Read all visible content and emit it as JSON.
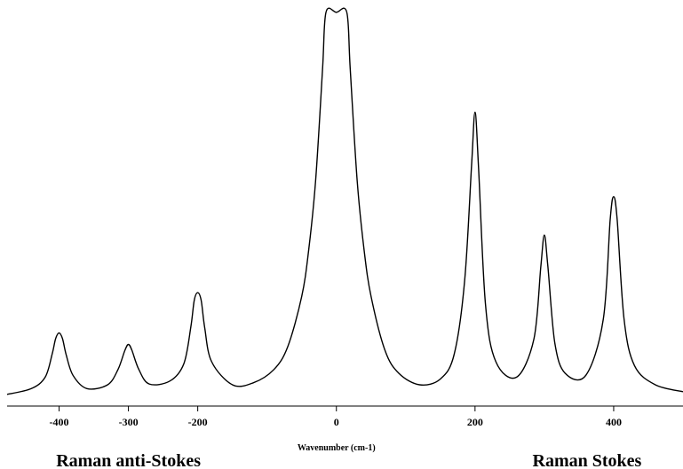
{
  "chart_data": {
    "type": "line",
    "title": "",
    "xlabel": "Wavenumber (cm-1)",
    "ylabel": "",
    "xlim": [
      -475,
      500
    ],
    "ylim": [
      0,
      1.0
    ],
    "xticks": [
      -400,
      -300,
      -200,
      0,
      200,
      400
    ],
    "xtick_labels": [
      "-400",
      "-300",
      "-200",
      "0",
      "200",
      "400"
    ],
    "grid": false,
    "peaks": [
      {
        "x": -400,
        "y": 0.165
      },
      {
        "x": -300,
        "y": 0.135
      },
      {
        "x": -200,
        "y": 0.27
      },
      {
        "x": -15,
        "y": 1.0
      },
      {
        "x": 15,
        "y": 1.0
      },
      {
        "x": 200,
        "y": 0.74
      },
      {
        "x": 300,
        "y": 0.42
      },
      {
        "x": 400,
        "y": 0.52
      }
    ],
    "series": [
      {
        "x": [
          -475,
          -440,
          -420,
          -410,
          -405,
          -400,
          -395,
          -390,
          -380,
          -360,
          -330,
          -315,
          -305,
          -300,
          -295,
          -285,
          -270,
          -240,
          -220,
          -210,
          -205,
          -200,
          -195,
          -190,
          -180,
          -150,
          -120,
          -90,
          -70,
          -50,
          -40,
          -30,
          -20,
          -15,
          0,
          15,
          20,
          30,
          40,
          50,
          70,
          90,
          120,
          150,
          170,
          185,
          195,
          200,
          205,
          215,
          230,
          260,
          285,
          295,
          300,
          305,
          315,
          330,
          360,
          385,
          395,
          400,
          405,
          415,
          430,
          460,
          500
        ],
        "y": [
          0.005,
          0.02,
          0.05,
          0.11,
          0.15,
          0.165,
          0.15,
          0.11,
          0.055,
          0.02,
          0.03,
          0.07,
          0.12,
          0.135,
          0.12,
          0.07,
          0.032,
          0.04,
          0.085,
          0.18,
          0.25,
          0.27,
          0.25,
          0.18,
          0.09,
          0.03,
          0.035,
          0.07,
          0.13,
          0.26,
          0.38,
          0.56,
          0.85,
          1.0,
          1.0,
          1.0,
          0.85,
          0.56,
          0.38,
          0.26,
          0.12,
          0.06,
          0.03,
          0.045,
          0.11,
          0.3,
          0.6,
          0.74,
          0.6,
          0.24,
          0.09,
          0.05,
          0.15,
          0.34,
          0.42,
          0.34,
          0.14,
          0.06,
          0.055,
          0.2,
          0.46,
          0.52,
          0.46,
          0.2,
          0.08,
          0.03,
          0.012
        ]
      }
    ],
    "annotations": [
      {
        "text": "Raman anti-Stokes",
        "x": -300
      },
      {
        "text": "Raman Stokes",
        "x": 400
      }
    ]
  }
}
